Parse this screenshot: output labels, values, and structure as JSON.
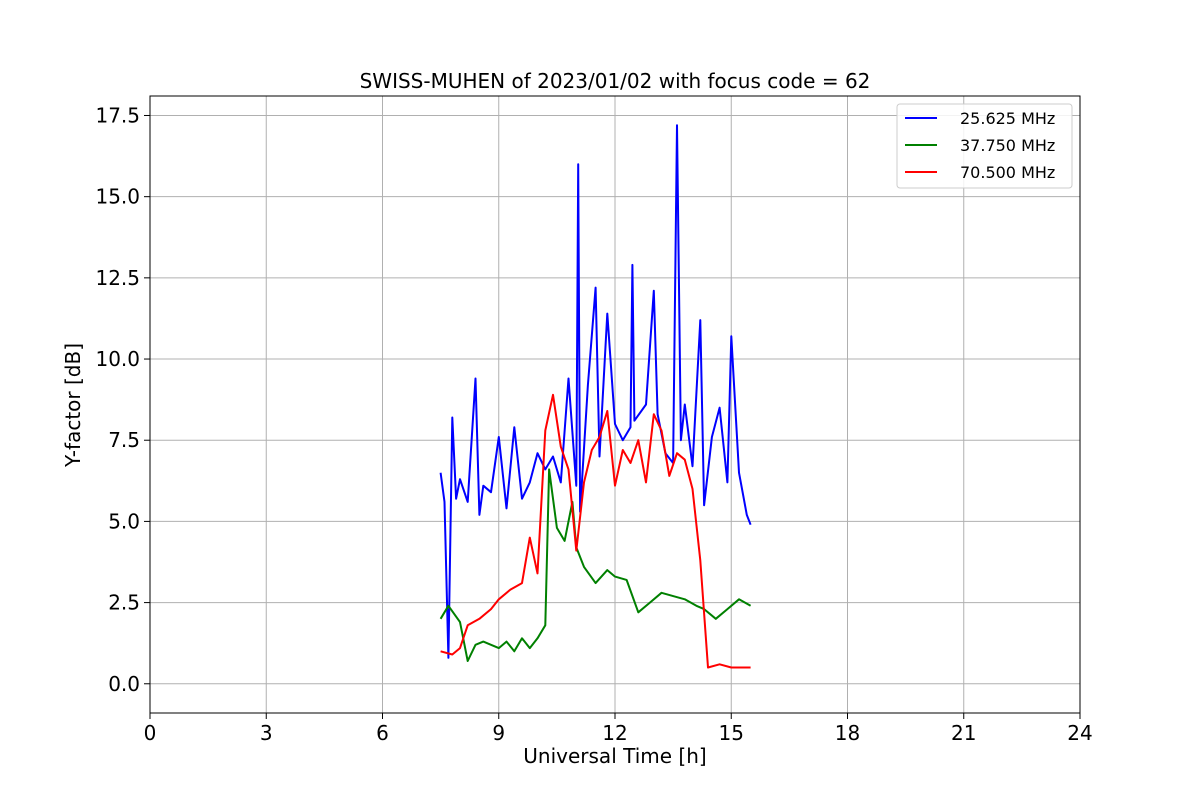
{
  "chart_data": {
    "type": "line",
    "title": "SWISS-MUHEN of 2023/01/02 with focus code = 62",
    "xlabel": "Universal Time [h]",
    "ylabel": "Y-factor [dB]",
    "xlim": [
      0,
      24
    ],
    "ylim": [
      -0.9,
      18.1
    ],
    "x_ticks": [
      0,
      3,
      6,
      9,
      12,
      15,
      18,
      21,
      24
    ],
    "x_tick_labels": [
      "0",
      "3",
      "6",
      "9",
      "12",
      "15",
      "18",
      "21",
      "24"
    ],
    "y_ticks": [
      0,
      2.5,
      5,
      7.5,
      10,
      12.5,
      15,
      17.5
    ],
    "y_tick_labels": [
      "0.0",
      "2.5",
      "5.0",
      "7.5",
      "10.0",
      "12.5",
      "15.0",
      "17.5"
    ],
    "grid": true,
    "legend_position": "top-right",
    "series": [
      {
        "name": "25.625 MHz",
        "color": "#0000ff",
        "x": [
          7.5,
          7.6,
          7.7,
          7.8,
          7.9,
          8.0,
          8.2,
          8.4,
          8.5,
          8.6,
          8.8,
          9.0,
          9.2,
          9.4,
          9.6,
          9.8,
          10.0,
          10.2,
          10.4,
          10.6,
          10.8,
          11.0,
          11.05,
          11.1,
          11.3,
          11.5,
          11.6,
          11.8,
          12.0,
          12.2,
          12.4,
          12.45,
          12.5,
          12.8,
          13.0,
          13.1,
          13.3,
          13.5,
          13.6,
          13.7,
          13.8,
          14.0,
          14.2,
          14.3,
          14.5,
          14.7,
          14.9,
          15.0,
          15.2,
          15.4,
          15.5
        ],
        "values": [
          6.5,
          5.6,
          0.8,
          8.2,
          5.7,
          6.3,
          5.6,
          9.4,
          5.2,
          6.1,
          5.9,
          7.6,
          5.4,
          7.9,
          5.7,
          6.2,
          7.1,
          6.6,
          7.0,
          6.2,
          9.4,
          6.1,
          16.0,
          5.3,
          9.2,
          12.2,
          7.0,
          11.4,
          8.0,
          7.5,
          7.9,
          12.9,
          8.1,
          8.6,
          12.1,
          8.3,
          7.1,
          6.8,
          17.2,
          7.5,
          8.6,
          6.7,
          11.2,
          5.5,
          7.6,
          8.5,
          6.2,
          10.7,
          6.5,
          5.2,
          4.9
        ]
      },
      {
        "name": "37.750 MHz",
        "color": "#008000",
        "x": [
          7.5,
          7.7,
          8.0,
          8.2,
          8.4,
          8.6,
          8.8,
          9.0,
          9.2,
          9.4,
          9.6,
          9.8,
          10.0,
          10.2,
          10.3,
          10.5,
          10.7,
          10.9,
          11.0,
          11.2,
          11.5,
          11.8,
          12.0,
          12.3,
          12.6,
          12.9,
          13.2,
          13.5,
          13.8,
          14.1,
          14.3,
          14.6,
          14.9,
          15.2,
          15.5
        ],
        "values": [
          2.0,
          2.4,
          1.9,
          0.7,
          1.2,
          1.3,
          1.2,
          1.1,
          1.3,
          1.0,
          1.4,
          1.1,
          1.4,
          1.8,
          6.6,
          4.8,
          4.4,
          5.6,
          4.2,
          3.6,
          3.1,
          3.5,
          3.3,
          3.2,
          2.2,
          2.5,
          2.8,
          2.7,
          2.6,
          2.4,
          2.3,
          2.0,
          2.3,
          2.6,
          2.4
        ]
      },
      {
        "name": "70.500 MHz",
        "color": "#ff0000",
        "x": [
          7.5,
          7.8,
          8.0,
          8.2,
          8.5,
          8.8,
          9.0,
          9.3,
          9.6,
          9.8,
          10.0,
          10.2,
          10.4,
          10.6,
          10.8,
          11.0,
          11.2,
          11.4,
          11.6,
          11.8,
          12.0,
          12.2,
          12.4,
          12.6,
          12.8,
          13.0,
          13.2,
          13.4,
          13.6,
          13.8,
          14.0,
          14.2,
          14.4,
          14.7,
          15.0,
          15.3,
          15.5
        ],
        "values": [
          1.0,
          0.9,
          1.1,
          1.8,
          2.0,
          2.3,
          2.6,
          2.9,
          3.1,
          4.5,
          3.4,
          7.8,
          8.9,
          7.3,
          6.6,
          4.1,
          6.2,
          7.2,
          7.6,
          8.4,
          6.1,
          7.2,
          6.8,
          7.5,
          6.2,
          8.3,
          7.8,
          6.4,
          7.1,
          6.9,
          6.0,
          3.8,
          0.5,
          0.6,
          0.5,
          0.5,
          0.5
        ]
      }
    ]
  }
}
